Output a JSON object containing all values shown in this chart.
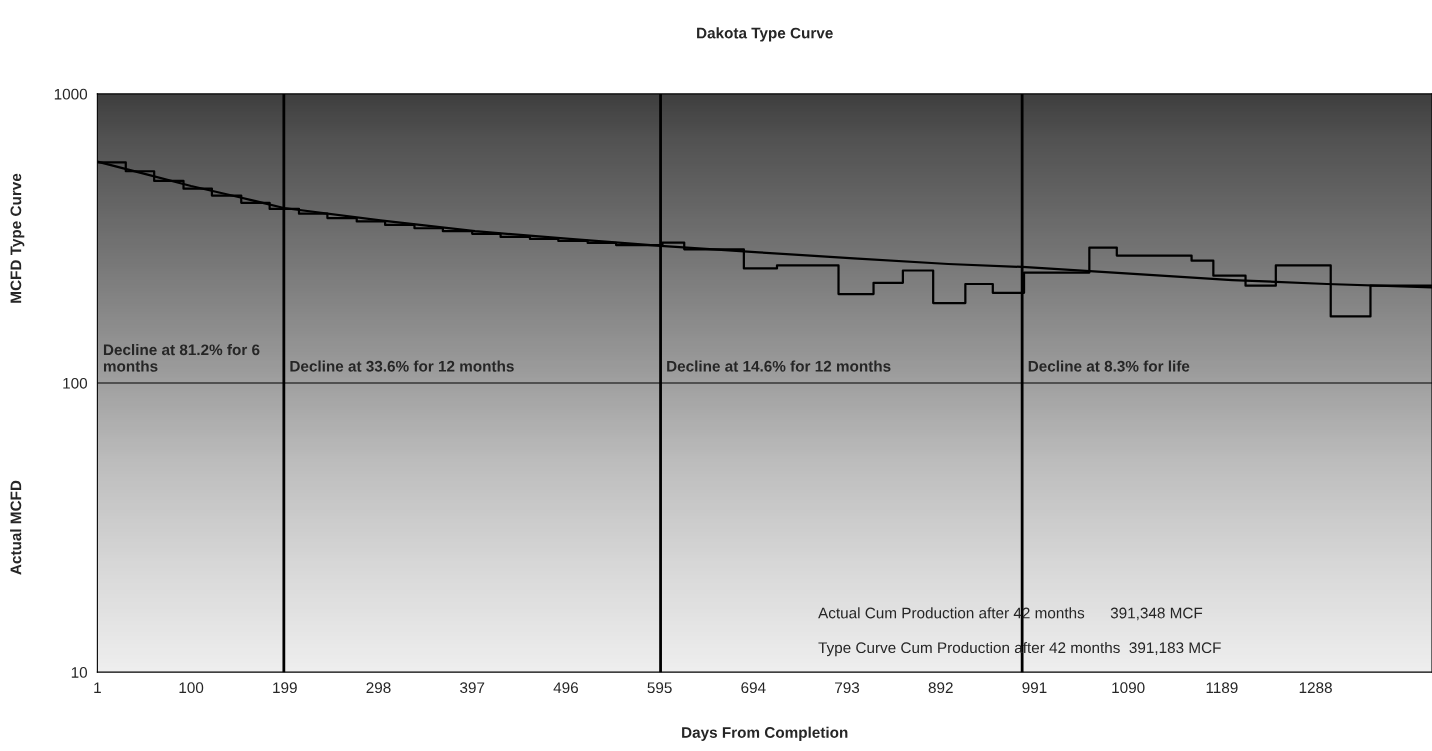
{
  "chart_data": {
    "type": "line",
    "title": "Dakota Type Curve",
    "xlabel": "Days From Completion",
    "x": [
      1,
      50,
      100,
      150,
      198,
      300,
      400,
      500,
      596,
      700,
      800,
      900,
      978,
      1100,
      1200,
      1300,
      1411
    ],
    "series": [
      {
        "color": "#000000",
        "values": [
          583,
          530,
          480,
          440,
          403,
          365,
          335,
          315,
          298,
          283,
          270,
          258,
          252,
          238,
          227,
          220,
          214
        ]
      },
      {
        "type": "step",
        "color": "#000000",
        "x": [
          1,
          31,
          61,
          92,
          122,
          153,
          183,
          214,
          244,
          275,
          305,
          336,
          366,
          397,
          427,
          458,
          488,
          519,
          549,
          598,
          621,
          684,
          719,
          784,
          821,
          852,
          884,
          918,
          947,
          980,
          1049,
          1078,
          1157,
          1180,
          1214,
          1246,
          1304,
          1346,
          1411
        ],
        "values": [
          580,
          540,
          500,
          470,
          445,
          420,
          400,
          385,
          372,
          362,
          352,
          343,
          335,
          328,
          320,
          315,
          310,
          305,
          300,
          306,
          290,
          249,
          255,
          203,
          222,
          245,
          189,
          220,
          205,
          241,
          294,
          276,
          265,
          235,
          217,
          255,
          170,
          217,
          217
        ]
      }
    ],
    "log": "y",
    "xlim": [
      1,
      1411
    ],
    "ylim": [
      10,
      1000
    ],
    "yticks": [
      10,
      100,
      1000
    ],
    "xticks": [
      1,
      100,
      199,
      298,
      397,
      496,
      595,
      694,
      793,
      892,
      991,
      1090,
      1189,
      1288
    ],
    "ylabel": "MCFD Type Curve",
    "legend": false,
    "marker": "none",
    "line_style": "solid",
    "ref_lines": [
      {
        "axis": "y",
        "value": 100,
        "color": "#000000"
      },
      {
        "axis": "x",
        "value": 198,
        "color": "#000000"
      },
      {
        "axis": "x",
        "value": 596,
        "color": "#000000"
      },
      {
        "axis": "x",
        "value": 978,
        "color": "#000000"
      }
    ],
    "annotations": [
      "Actual MCFD",
      "Decline at 81.2% for 6\nmonths",
      "Decline at 33.6% for 12 months",
      "Decline at 14.6% for 12 months",
      "Decline at 8.3% for life",
      "Actual Cum Production after 42 months      391,348 MCF",
      "Type Curve Cum Production after 42 months  391,183 MCF"
    ]
  }
}
